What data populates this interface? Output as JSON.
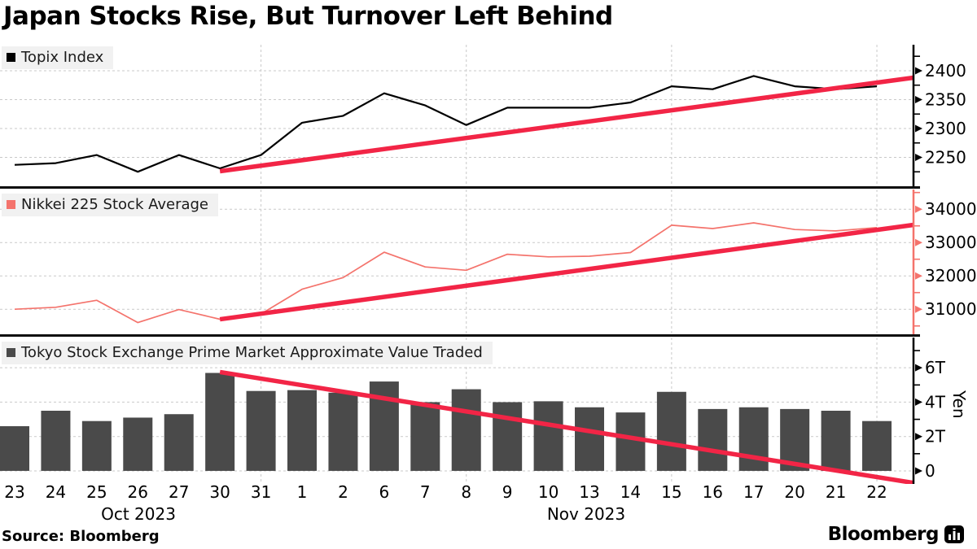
{
  "title": "Japan Stocks Rise, But Turnover Left Behind",
  "source_label": "Source: Bloomberg",
  "logo_text": "Bloomberg",
  "colors": {
    "trend_line": "#f22546",
    "topix_line": "#000000",
    "nikkei_line": "#f4736c",
    "bar_fill": "#4a4a4a",
    "grid": "#c9c9c9",
    "legend_bg": "#f1f1f1",
    "axis_black": "#000000",
    "axis_salmon": "#f4736c"
  },
  "x_axis": {
    "categories": [
      "23",
      "24",
      "25",
      "26",
      "27",
      "30",
      "31",
      "1",
      "2",
      "6",
      "7",
      "8",
      "9",
      "10",
      "13",
      "14",
      "15",
      "16",
      "17",
      "20",
      "21",
      "22"
    ],
    "month_labels": [
      {
        "label": "Oct 2023",
        "center_x": 170
      },
      {
        "label": "Nov 2023",
        "center_x": 720
      }
    ],
    "grid_indices": [
      6,
      11,
      16,
      21
    ]
  },
  "chart_data": [
    {
      "type": "line",
      "title": "Topix Index",
      "legend_label": "Topix Index",
      "series_color": "#000000",
      "axis_color": "#000000",
      "values": [
        2237,
        2240,
        2254,
        2225,
        2254,
        2231,
        2254,
        2310,
        2322,
        2361,
        2340,
        2306,
        2336,
        2336,
        2336,
        2345,
        2373,
        2368,
        2391,
        2373,
        2368,
        2373
      ],
      "ylim": [
        2200,
        2445
      ],
      "yticks": [
        2250,
        2300,
        2350,
        2400
      ],
      "ytick_labels": [
        "2250",
        "2300",
        "2350",
        "2400"
      ],
      "minor_ticks": [
        2225,
        2275,
        2325,
        2375,
        2425
      ],
      "trend": {
        "start_index": 5,
        "start_value": 2226,
        "end_value": 2388
      },
      "legend_top": 57,
      "layout": {
        "top": 55,
        "height": 174
      }
    },
    {
      "type": "line",
      "title": "Nikkei 225 Stock Average",
      "legend_label": "Nikkei 225 Stock Average",
      "series_color": "#f4736c",
      "axis_color": "#f4736c",
      "values": [
        31000,
        31060,
        31270,
        30600,
        30990,
        30700,
        30860,
        31600,
        31950,
        32710,
        32270,
        32170,
        32650,
        32570,
        32590,
        32700,
        33520,
        33420,
        33590,
        33390,
        33350,
        33450
      ],
      "ylim": [
        30250,
        34590
      ],
      "yticks": [
        31000,
        32000,
        33000,
        34000
      ],
      "ytick_labels": [
        "31000",
        "32000",
        "33000",
        "34000"
      ],
      "minor_ticks": [
        30500,
        31500,
        32500,
        33500,
        34500
      ],
      "trend": {
        "start_index": 5,
        "start_value": 30700,
        "end_value": 33530
      },
      "legend_top": 238,
      "layout": {
        "top": 233,
        "height": 178
      }
    },
    {
      "type": "bar",
      "title": "Tokyo Stock Exchange Prime Market Approximate Value Traded",
      "legend_label": "Tokyo Stock Exchange Prime Market Approximate Value Traded",
      "series_color": "#4a4a4a",
      "axis_color": "#000000",
      "ylabel": "Yen",
      "values": [
        2.6,
        3.5,
        2.9,
        3.1,
        3.3,
        5.7,
        4.65,
        4.7,
        4.55,
        5.2,
        4.0,
        4.75,
        4.0,
        4.05,
        3.7,
        3.4,
        4.6,
        3.6,
        3.7,
        3.6,
        3.5,
        2.9
      ],
      "values_unit": "trillion yen",
      "ylim": [
        -0.76,
        7.76
      ],
      "yticks": [
        0,
        2,
        4,
        6
      ],
      "ytick_labels": [
        "0",
        "2T",
        "4T",
        "6T"
      ],
      "minor_ticks": [
        1,
        3,
        5,
        7
      ],
      "trend": {
        "start_index": 5,
        "start_value": 5.75,
        "end_value": -0.7
      },
      "legend_top": 420,
      "layout": {
        "top": 415,
        "height": 180
      }
    }
  ]
}
